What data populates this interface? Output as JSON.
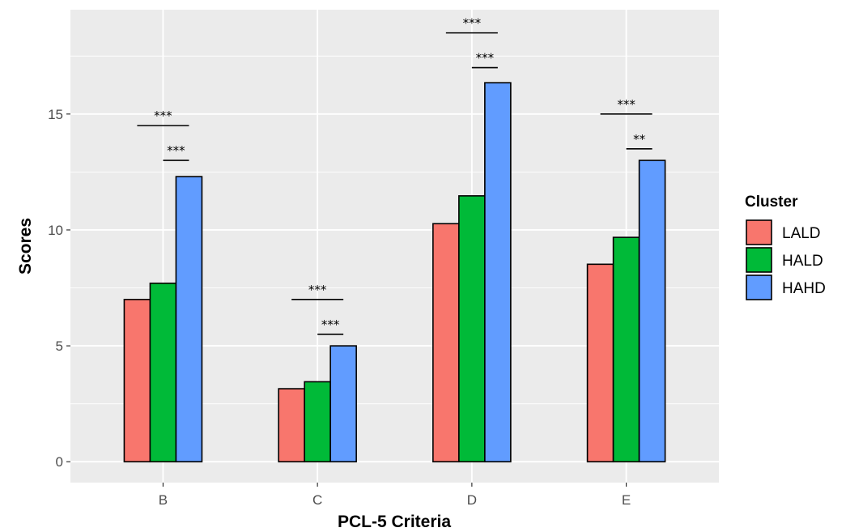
{
  "chart_data": {
    "type": "bar",
    "title": "",
    "xlabel": "PCL-5 Criteria",
    "ylabel": "Scores",
    "categories": [
      "B",
      "C",
      "D",
      "E"
    ],
    "ylim": [
      -0.9,
      19.5
    ],
    "yticks": [
      0,
      5,
      10,
      15
    ],
    "grid": true,
    "legend": {
      "title": "Cluster",
      "position": "right"
    },
    "series": [
      {
        "name": "LALD",
        "color": "#F8766D",
        "values": [
          7.0,
          3.15,
          10.27,
          8.52
        ]
      },
      {
        "name": "HALD",
        "color": "#00BA38",
        "values": [
          7.7,
          3.45,
          11.47,
          9.68
        ]
      },
      {
        "name": "HAHD",
        "color": "#619CFF",
        "values": [
          12.3,
          5.0,
          16.35,
          13.0
        ]
      }
    ],
    "annotations": [
      {
        "category": "B",
        "from": "LALD",
        "to": "HAHD",
        "y": 14.5,
        "label": "***"
      },
      {
        "category": "B",
        "from": "HALD",
        "to": "HAHD",
        "y": 13.0,
        "label": "***"
      },
      {
        "category": "C",
        "from": "LALD",
        "to": "HAHD",
        "y": 7.0,
        "label": "***"
      },
      {
        "category": "C",
        "from": "HALD",
        "to": "HAHD",
        "y": 5.5,
        "label": "***"
      },
      {
        "category": "D",
        "from": "LALD",
        "to": "HAHD",
        "y": 18.5,
        "label": "***"
      },
      {
        "category": "D",
        "from": "HALD",
        "to": "HAHD",
        "y": 17.0,
        "label": "***"
      },
      {
        "category": "E",
        "from": "LALD",
        "to": "HAHD",
        "y": 15.0,
        "label": "***"
      },
      {
        "category": "E",
        "from": "HALD",
        "to": "HAHD",
        "y": 13.5,
        "label": "**"
      }
    ]
  }
}
